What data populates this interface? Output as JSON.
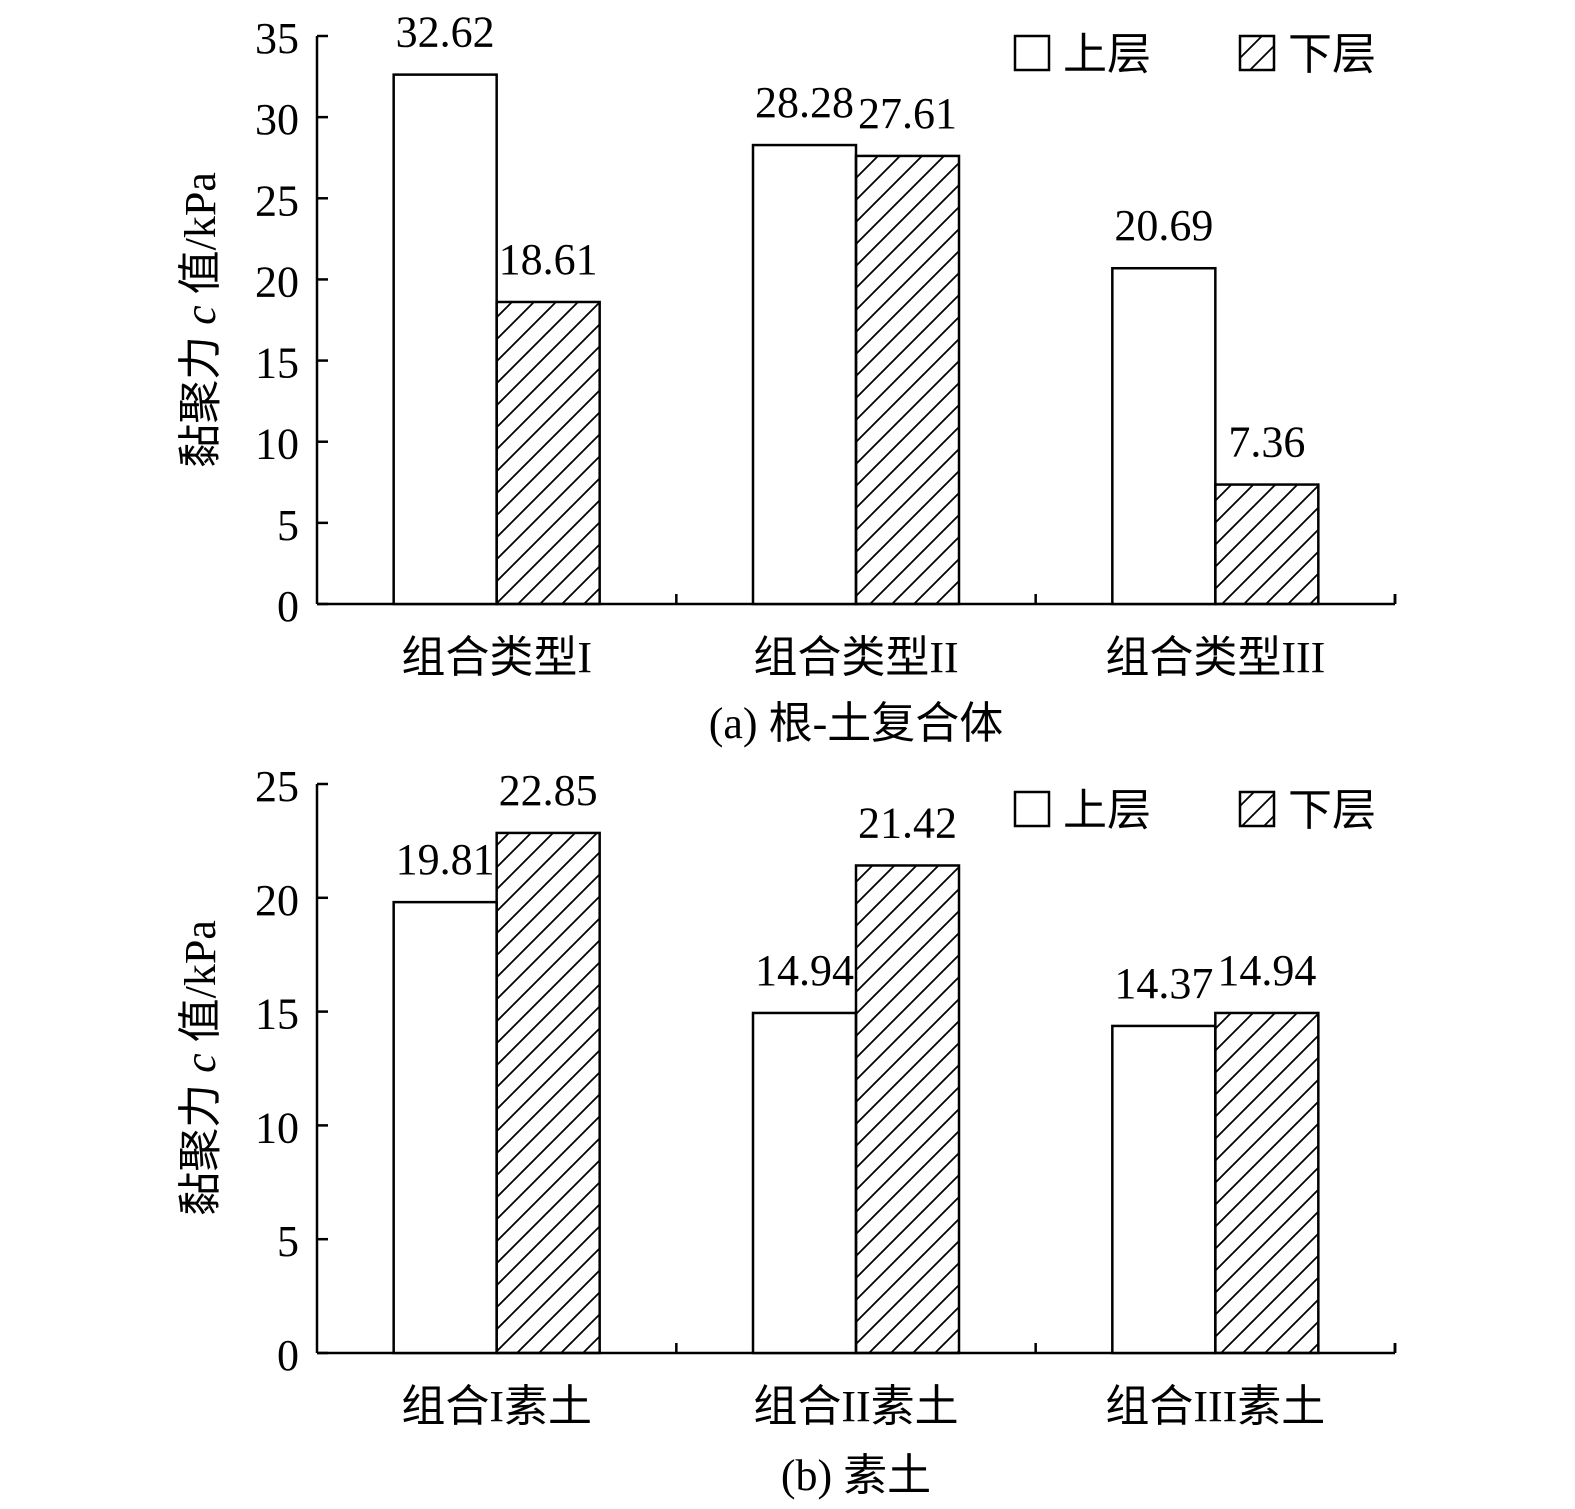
{
  "chart_data": [
    {
      "type": "bar",
      "caption": "(a) 根-土复合体",
      "ylabel_prefix": "黏聚力 ",
      "ylabel_var": "c",
      "ylabel_suffix": " 值/kPa",
      "ylim": [
        0,
        35
      ],
      "yticks": [
        "0",
        "5",
        "10",
        "15",
        "20",
        "25",
        "30",
        "35"
      ],
      "categories": [
        "组合类型I",
        "组合类型II",
        "组合类型III"
      ],
      "series": [
        {
          "name": "上层",
          "pattern": "open",
          "values": [
            32.62,
            28.28,
            20.69
          ],
          "labels": [
            "32.62",
            "28.28",
            "20.69"
          ]
        },
        {
          "name": "下层",
          "pattern": "hatched",
          "values": [
            18.61,
            27.61,
            7.36
          ],
          "labels": [
            "18.61",
            "27.61",
            "7.36"
          ]
        }
      ],
      "legend_position": "top-right",
      "grid": false
    },
    {
      "type": "bar",
      "caption": "(b) 素土",
      "ylabel_prefix": "黏聚力 ",
      "ylabel_var": "c",
      "ylabel_suffix": " 值/kPa",
      "ylim": [
        0,
        25
      ],
      "yticks": [
        "0",
        "5",
        "10",
        "15",
        "20",
        "25"
      ],
      "categories": [
        "组合I素土",
        "组合II素土",
        "组合III素土"
      ],
      "series": [
        {
          "name": "上层",
          "pattern": "open",
          "values": [
            19.81,
            14.94,
            14.37
          ],
          "labels": [
            "19.81",
            "14.94",
            "14.37"
          ]
        },
        {
          "name": "下层",
          "pattern": "hatched",
          "values": [
            22.85,
            21.42,
            14.94
          ],
          "labels": [
            "22.85",
            "21.42",
            "14.94"
          ]
        }
      ],
      "legend_position": "top-right",
      "grid": false
    }
  ]
}
